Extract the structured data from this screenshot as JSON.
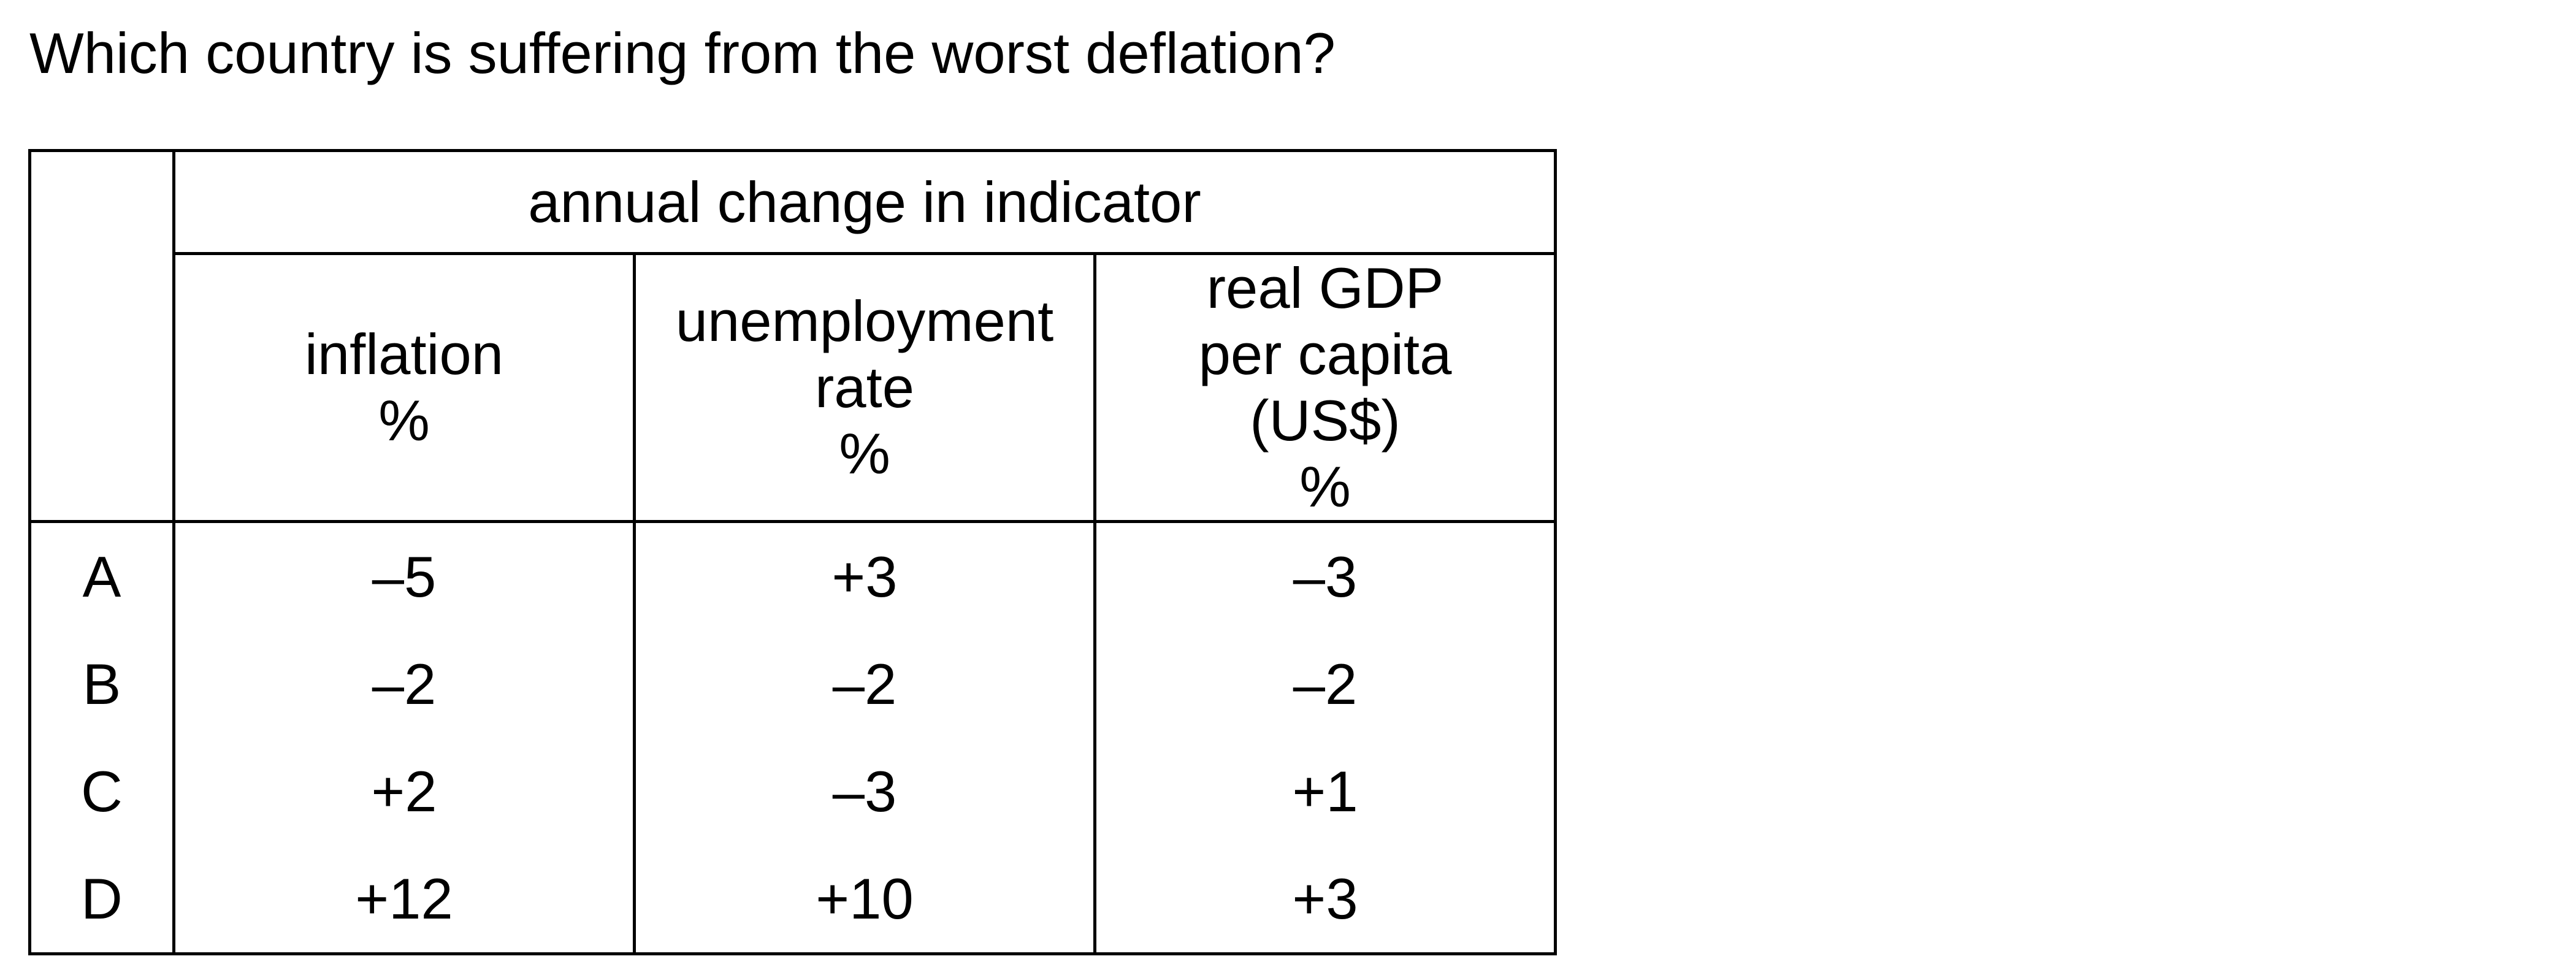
{
  "question": "Which country is suffering from the worst deflation?",
  "table": {
    "group_header": "annual change in indicator",
    "columns": [
      {
        "key": "inflation",
        "lines": [
          "inflation",
          "%"
        ]
      },
      {
        "key": "unemployment",
        "lines": [
          "unemployment",
          "rate",
          "%"
        ]
      },
      {
        "key": "gdp",
        "lines": [
          "real GDP",
          "per capita",
          "(US$)",
          "%"
        ]
      }
    ],
    "rows": [
      {
        "label": "A",
        "values": [
          "–5",
          "+3",
          "–3"
        ]
      },
      {
        "label": "B",
        "values": [
          "–2",
          "–2",
          "–2"
        ]
      },
      {
        "label": "C",
        "values": [
          "+2",
          "–3",
          "+1"
        ]
      },
      {
        "label": "D",
        "values": [
          "+12",
          "+10",
          "+3"
        ]
      }
    ]
  }
}
